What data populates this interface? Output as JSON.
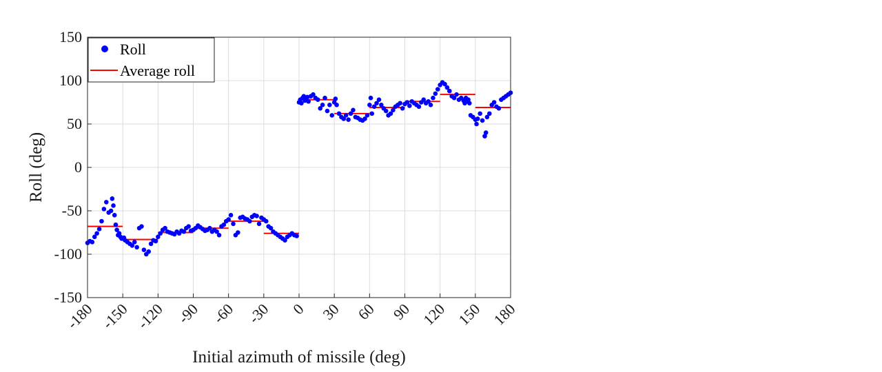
{
  "chart_data": {
    "type": "scatter",
    "title": "",
    "xlabel": "Initial azimuth of missile (deg)",
    "ylabel": "Roll (deg)",
    "xlim": [
      -180,
      180
    ],
    "ylim": [
      -150,
      150
    ],
    "xticks": [
      -180,
      -150,
      -120,
      -90,
      -60,
      -30,
      0,
      30,
      60,
      90,
      120,
      150,
      180
    ],
    "yticks": [
      -150,
      -100,
      -50,
      0,
      50,
      100,
      150
    ],
    "grid": true,
    "legend": {
      "position": "top-left",
      "entries": [
        {
          "label": "Roll",
          "marker": "dot",
          "color": "#0000ff"
        },
        {
          "label": "Average roll",
          "marker": "line",
          "color": "#ff0000"
        }
      ]
    },
    "colors": {
      "roll": "#0000ff",
      "average": "#ff0000"
    },
    "series": [
      {
        "name": "Roll",
        "kind": "scatter",
        "x": [
          -180,
          -178,
          -176,
          -174,
          -172,
          -170,
          -168,
          -166,
          -164,
          -162,
          -160,
          -159,
          -158,
          -157,
          -156,
          -155,
          -154,
          -153,
          -152,
          -151,
          -150,
          -149,
          -148,
          -146,
          -144,
          -142,
          -140,
          -138,
          -136,
          -134,
          -132,
          -130,
          -128,
          -126,
          -124,
          -122,
          -120,
          -118,
          -116,
          -114,
          -112,
          -110,
          -108,
          -106,
          -104,
          -102,
          -100,
          -98,
          -96,
          -94,
          -92,
          -90,
          -88,
          -86,
          -84,
          -82,
          -80,
          -78,
          -76,
          -74,
          -72,
          -70,
          -68,
          -66,
          -64,
          -62,
          -60,
          -58,
          -56,
          -54,
          -52,
          -50,
          -48,
          -46,
          -44,
          -42,
          -40,
          -38,
          -36,
          -34,
          -32,
          -30,
          -28,
          -26,
          -24,
          -22,
          -20,
          -18,
          -16,
          -14,
          -12,
          -10,
          -8,
          -6,
          -4,
          -2,
          0,
          1,
          2,
          3,
          4,
          5,
          6,
          7,
          8,
          10,
          12,
          14,
          16,
          18,
          20,
          22,
          24,
          26,
          28,
          30,
          31,
          32,
          34,
          36,
          38,
          40,
          42,
          44,
          46,
          48,
          50,
          52,
          54,
          56,
          58,
          60,
          61,
          62,
          64,
          66,
          68,
          70,
          72,
          74,
          76,
          78,
          80,
          82,
          84,
          86,
          88,
          90,
          92,
          94,
          96,
          98,
          100,
          102,
          104,
          106,
          108,
          110,
          112,
          114,
          116,
          118,
          120,
          122,
          124,
          126,
          128,
          130,
          132,
          134,
          136,
          138,
          140,
          141,
          142,
          143,
          144,
          145,
          146,
          148,
          150,
          151,
          152,
          154,
          156,
          158,
          159,
          160,
          162,
          164,
          166,
          168,
          170,
          172,
          174,
          176,
          178,
          180
        ],
        "y": [
          -87,
          -85,
          -86,
          -80,
          -76,
          -71,
          -62,
          -48,
          -40,
          -52,
          -50,
          -36,
          -44,
          -55,
          -66,
          -72,
          -78,
          -76,
          -80,
          -82,
          -82,
          -81,
          -84,
          -86,
          -88,
          -90,
          -86,
          -92,
          -70,
          -68,
          -95,
          -100,
          -97,
          -88,
          -84,
          -85,
          -80,
          -76,
          -72,
          -70,
          -74,
          -75,
          -76,
          -77,
          -74,
          -76,
          -73,
          -74,
          -70,
          -68,
          -73,
          -72,
          -70,
          -67,
          -69,
          -71,
          -73,
          -72,
          -70,
          -74,
          -72,
          -74,
          -78,
          -68,
          -66,
          -62,
          -60,
          -55,
          -65,
          -78,
          -75,
          -58,
          -57,
          -59,
          -60,
          -62,
          -57,
          -55,
          -56,
          -65,
          -58,
          -60,
          -62,
          -68,
          -70,
          -74,
          -76,
          -78,
          -80,
          -82,
          -84,
          -80,
          -78,
          -76,
          -78,
          -79,
          75,
          78,
          74,
          80,
          82,
          77,
          79,
          81,
          76,
          82,
          84,
          80,
          78,
          68,
          72,
          80,
          65,
          72,
          60,
          75,
          79,
          72,
          62,
          58,
          56,
          60,
          55,
          62,
          66,
          58,
          57,
          55,
          54,
          56,
          60,
          72,
          80,
          62,
          70,
          74,
          78,
          72,
          68,
          65,
          60,
          62,
          66,
          70,
          72,
          74,
          68,
          73,
          75,
          71,
          76,
          74,
          72,
          70,
          75,
          78,
          74,
          76,
          72,
          80,
          85,
          90,
          95,
          98,
          96,
          92,
          88,
          82,
          80,
          84,
          78,
          80,
          77,
          74,
          80,
          76,
          78,
          74,
          60,
          58,
          55,
          50,
          56,
          62,
          54,
          36,
          40,
          58,
          62,
          72,
          75,
          70,
          68,
          78,
          80,
          82,
          84,
          86
        ]
      },
      {
        "name": "Average roll",
        "kind": "step",
        "segments": [
          {
            "x": [
              -180,
              -150
            ],
            "y": -68
          },
          {
            "x": [
              -150,
              -120
            ],
            "y": -83
          },
          {
            "x": [
              -120,
              -90
            ],
            "y": -75
          },
          {
            "x": [
              -90,
              -60
            ],
            "y": -70
          },
          {
            "x": [
              -60,
              -30
            ],
            "y": -62
          },
          {
            "x": [
              -30,
              0
            ],
            "y": -76
          },
          {
            "x": [
              0,
              30
            ],
            "y": 78
          },
          {
            "x": [
              30,
              60
            ],
            "y": 62
          },
          {
            "x": [
              60,
              90
            ],
            "y": 69
          },
          {
            "x": [
              90,
              120
            ],
            "y": 76
          },
          {
            "x": [
              120,
              150
            ],
            "y": 84
          },
          {
            "x": [
              150,
              180
            ],
            "y": 69
          }
        ]
      }
    ]
  }
}
